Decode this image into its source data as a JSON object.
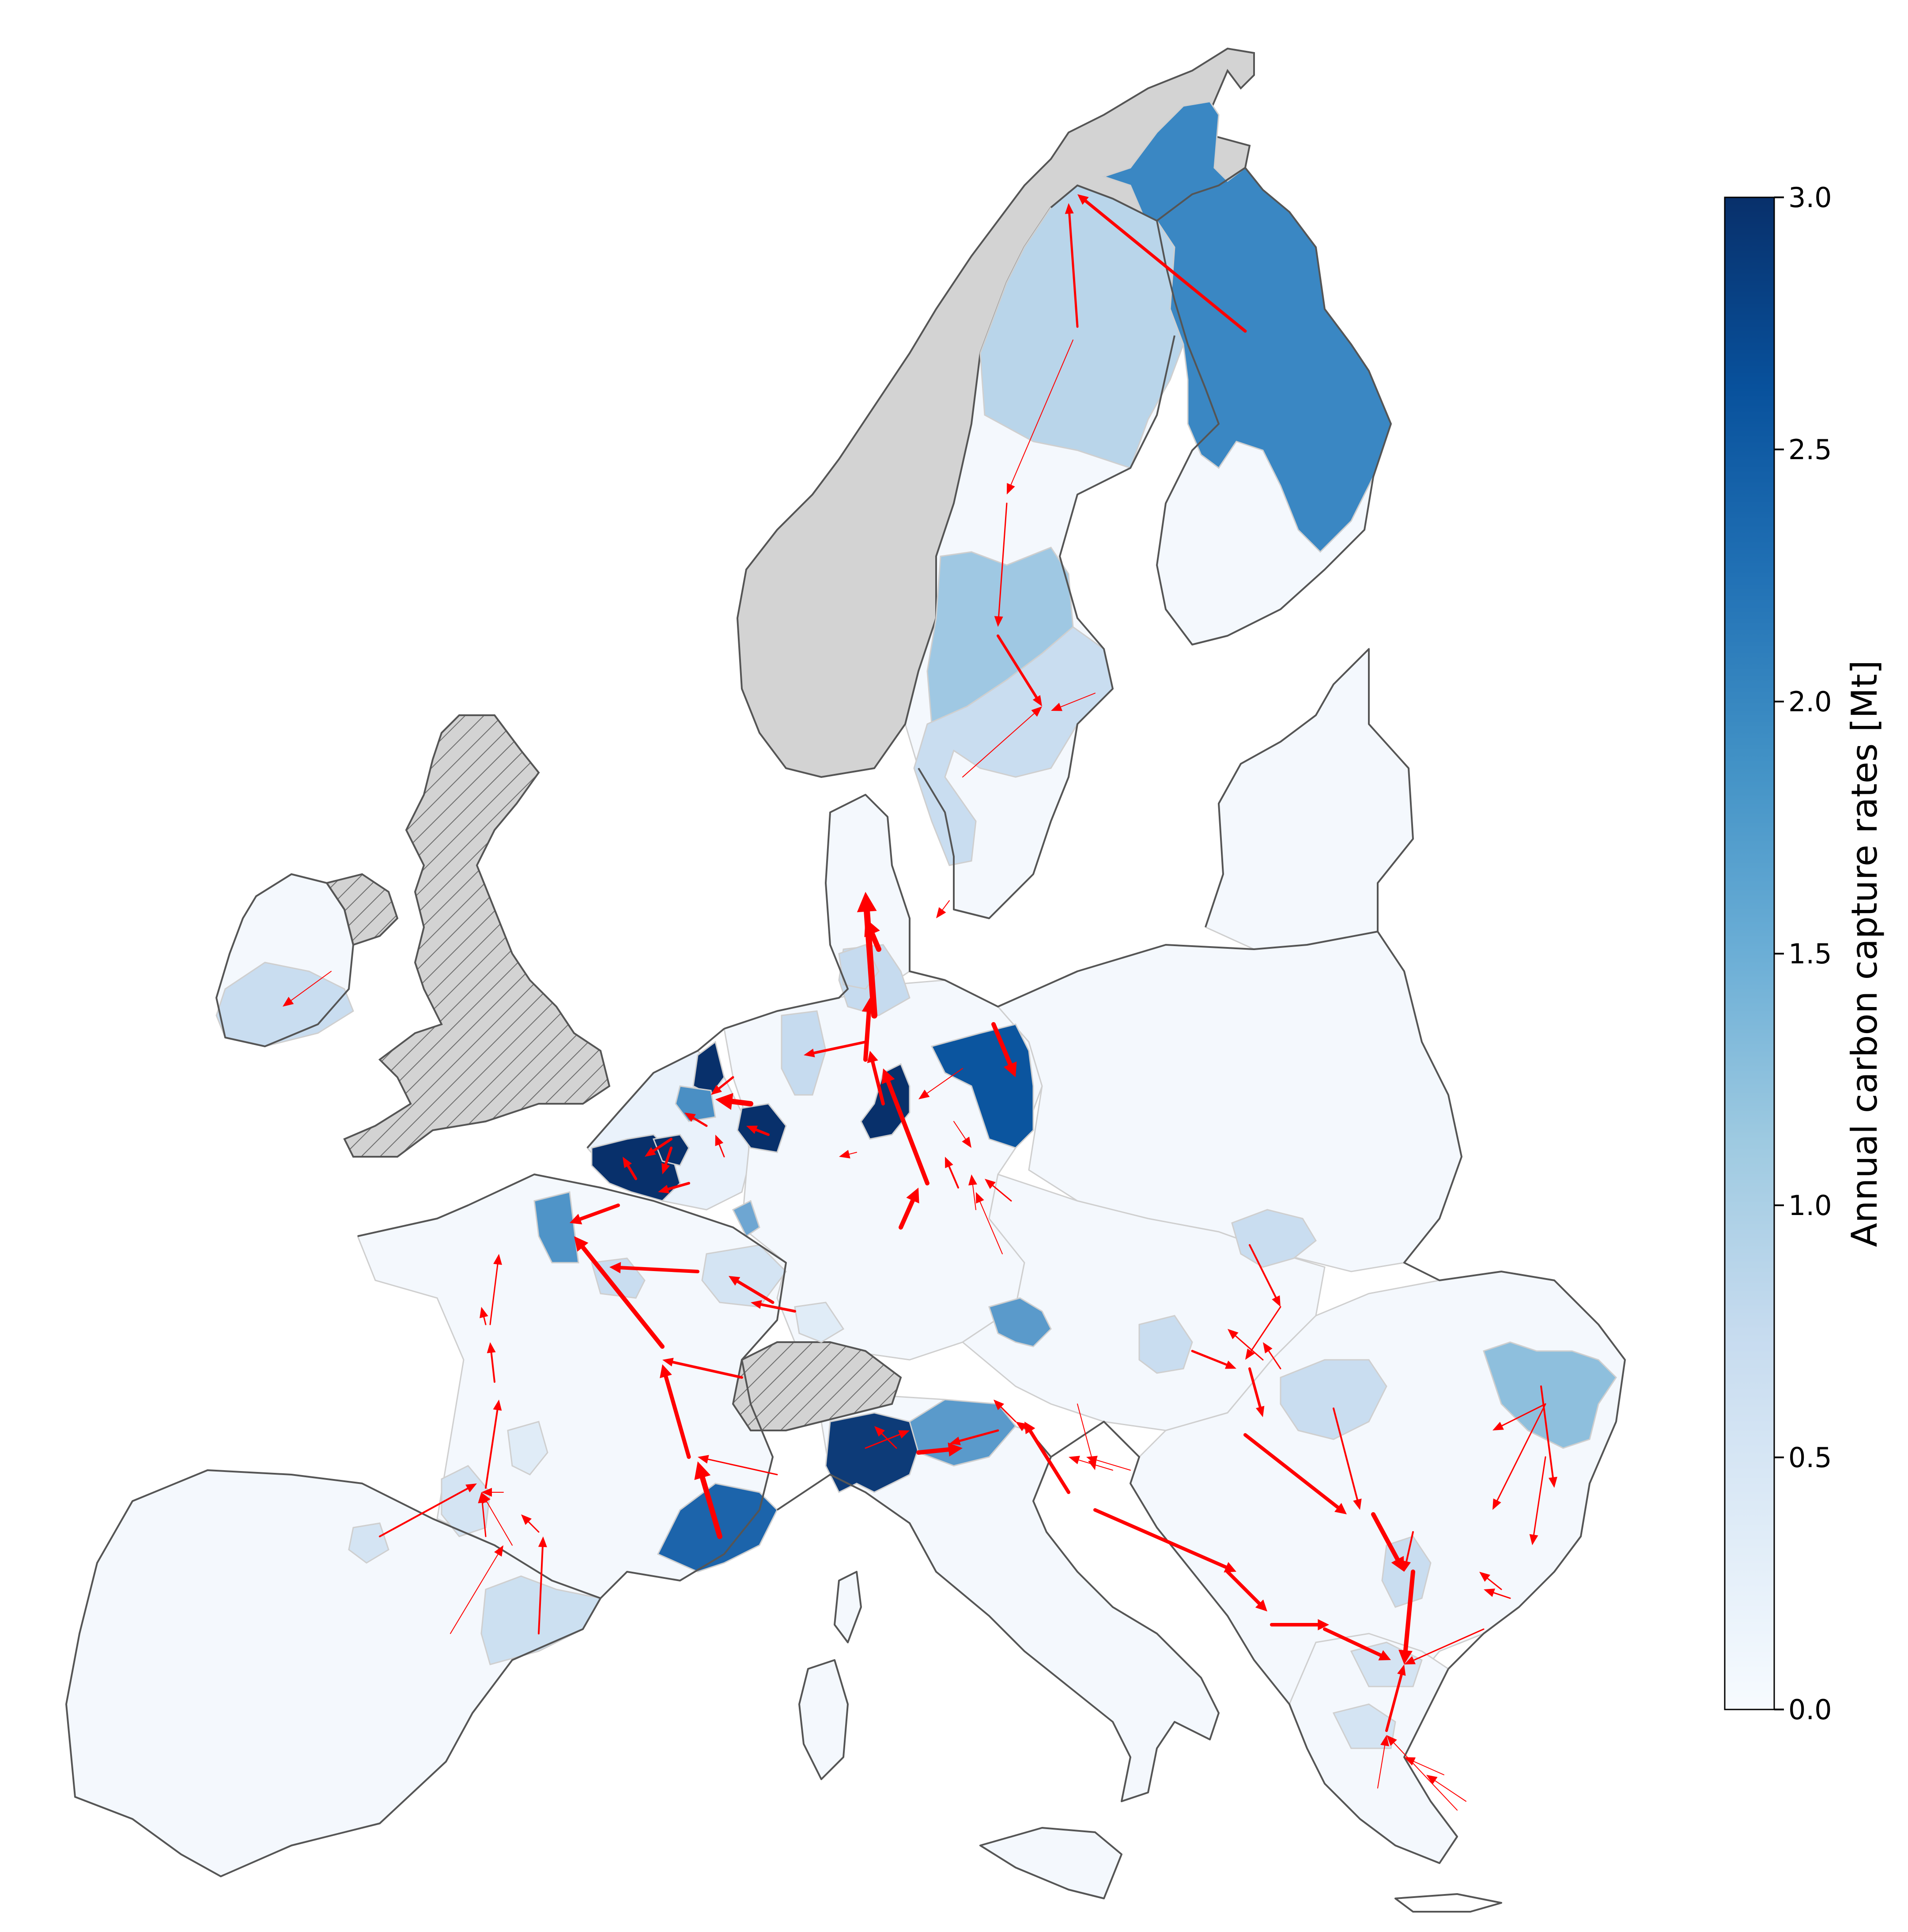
{
  "colorbar": {
    "label": "Annual carbon capture rates [Mt]",
    "ticks": [
      "0.0",
      "0.5",
      "1.0",
      "1.5",
      "2.0",
      "2.5",
      "3.0"
    ],
    "gradient": [
      "#f7fbff",
      "#deebf7",
      "#c6dbef",
      "#9ecae1",
      "#6baed6",
      "#4292c6",
      "#2171b5",
      "#08519c",
      "#08306b"
    ]
  },
  "legend_colors": {
    "non_eu_country": "#d3d3d3",
    "flow_arrows": "#ff0000",
    "coastline": "#555555",
    "region_border": "#cfcfcf"
  }
}
